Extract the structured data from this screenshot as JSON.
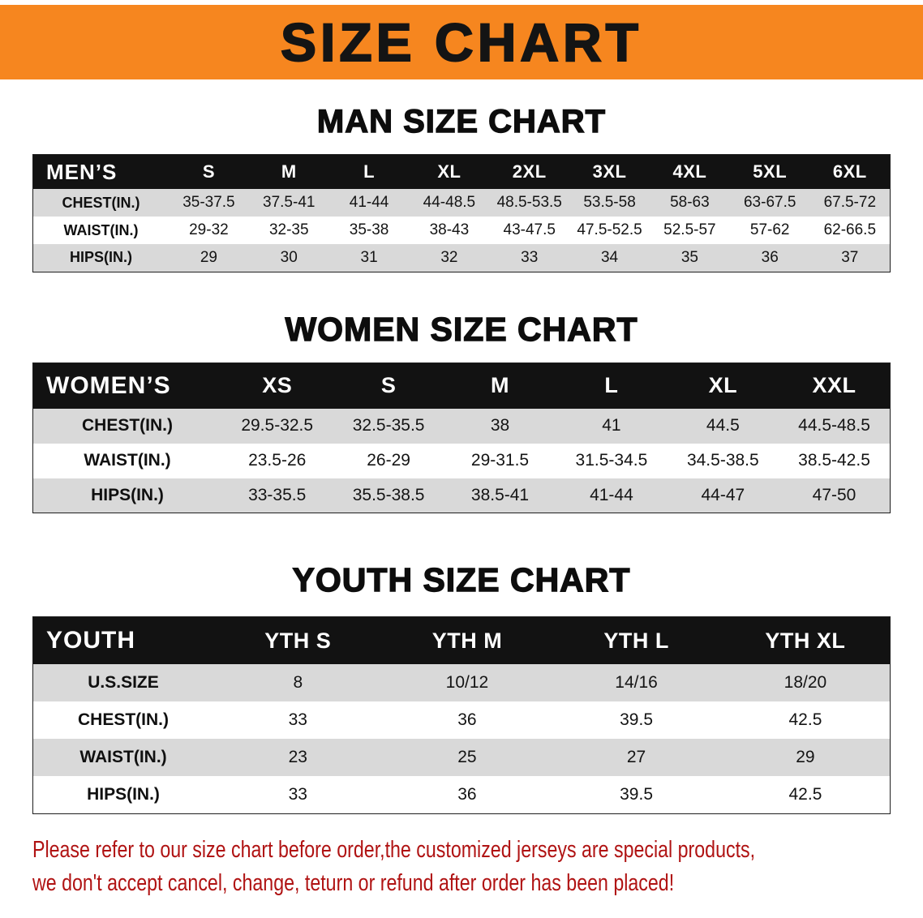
{
  "banner": {
    "title": "SIZE CHART"
  },
  "colors": {
    "banner_bg": "#f6861f",
    "table_header_bg": "#121212",
    "row_stripe": "#d9d9d9",
    "notice_text": "#b01313"
  },
  "sections": [
    {
      "heading": "MAN SIZE CHART",
      "table": {
        "label": "MEN’S",
        "columns": [
          "S",
          "M",
          "L",
          "XL",
          "2XL",
          "3XL",
          "4XL",
          "5XL",
          "6XL"
        ],
        "rows": [
          {
            "label": "CHEST(IN.)",
            "values": [
              "35-37.5",
              "37.5-41",
              "41-44",
              "44-48.5",
              "48.5-53.5",
              "53.5-58",
              "58-63",
              "63-67.5",
              "67.5-72"
            ]
          },
          {
            "label": "WAIST(IN.)",
            "values": [
              "29-32",
              "32-35",
              "35-38",
              "38-43",
              "43-47.5",
              "47.5-52.5",
              "52.5-57",
              "57-62",
              "62-66.5"
            ]
          },
          {
            "label": "HIPS(IN.)",
            "values": [
              "29",
              "30",
              "31",
              "32",
              "33",
              "34",
              "35",
              "36",
              "37"
            ]
          }
        ]
      }
    },
    {
      "heading": "WOMEN SIZE CHART",
      "table": {
        "label": "WOMEN’S",
        "columns": [
          "XS",
          "S",
          "M",
          "L",
          "XL",
          "XXL"
        ],
        "rows": [
          {
            "label": "CHEST(IN.)",
            "values": [
              "29.5-32.5",
              "32.5-35.5",
              "38",
              "41",
              "44.5",
              "44.5-48.5"
            ]
          },
          {
            "label": "WAIST(IN.)",
            "values": [
              "23.5-26",
              "26-29",
              "29-31.5",
              "31.5-34.5",
              "34.5-38.5",
              "38.5-42.5"
            ]
          },
          {
            "label": "HIPS(IN.)",
            "values": [
              "33-35.5",
              "35.5-38.5",
              "38.5-41",
              "41-44",
              "44-47",
              "47-50"
            ]
          }
        ]
      }
    },
    {
      "heading": "YOUTH SIZE CHART",
      "table": {
        "label": "YOUTH",
        "columns": [
          "YTH S",
          "YTH M",
          "YTH L",
          "YTH XL"
        ],
        "rows": [
          {
            "label": "U.S.SIZE",
            "values": [
              "8",
              "10/12",
              "14/16",
              "18/20"
            ]
          },
          {
            "label": "CHEST(IN.)",
            "values": [
              "33",
              "36",
              "39.5",
              "42.5"
            ]
          },
          {
            "label": "WAIST(IN.)",
            "values": [
              "23",
              "25",
              "27",
              "29"
            ]
          },
          {
            "label": "HIPS(IN.)",
            "values": [
              "33",
              "36",
              "39.5",
              "42.5"
            ]
          }
        ]
      }
    }
  ],
  "footer": {
    "lines": [
      "Please refer to our size chart before order,the customized jerseys are special products,",
      "we don't accept cancel, change, teturn or refund after order has been placed!"
    ]
  }
}
